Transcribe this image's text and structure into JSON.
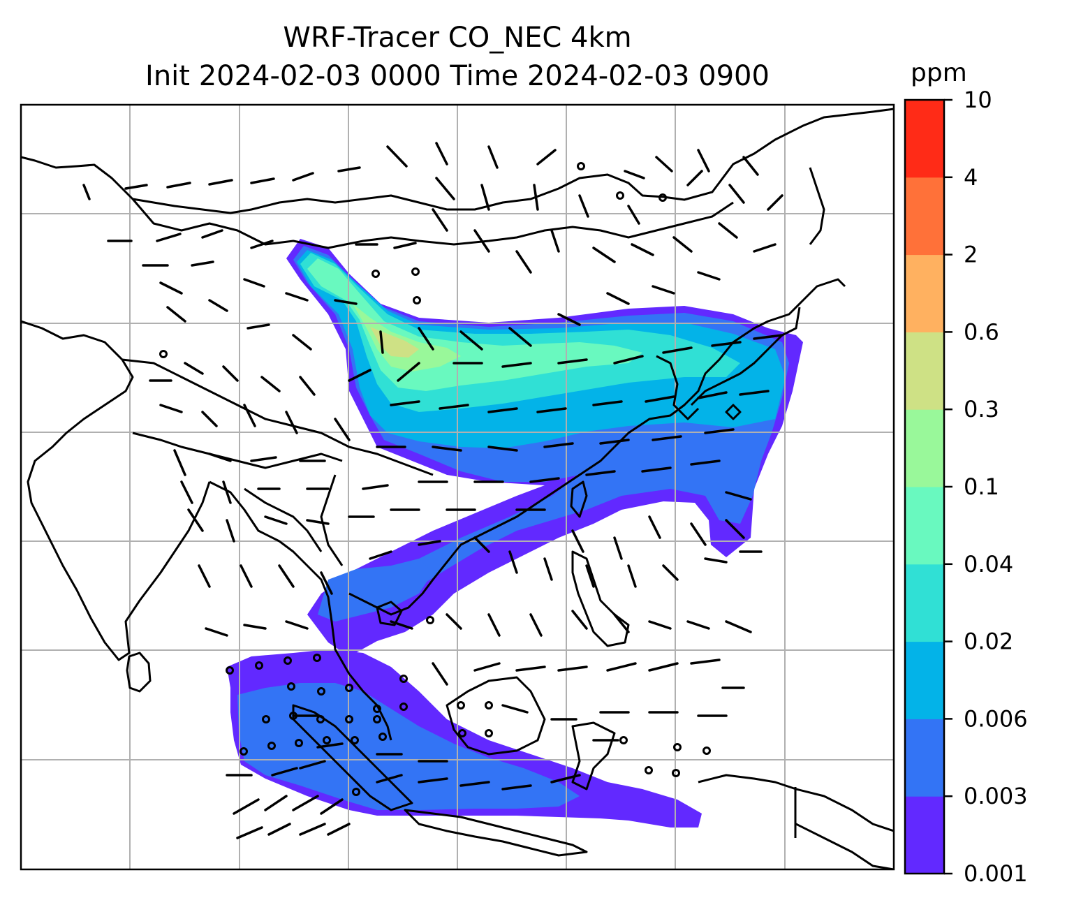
{
  "title": {
    "line1": "WRF-Tracer CO_NEC 4km",
    "line2": "Init 2024-02-03 0000 Time 2024-02-03 0900"
  },
  "colorbar": {
    "unit": "ppm",
    "ticks": [
      "0.001",
      "0.003",
      "0.006",
      "0.02",
      "0.04",
      "0.1",
      "0.3",
      "0.6",
      "2",
      "4",
      "10"
    ],
    "colors": [
      "#6229ff",
      "#3374f5",
      "#03b3e8",
      "#30e0d5",
      "#69f9bf",
      "#99f89a",
      "#cee185",
      "#ffb160",
      "#ff7139",
      "#ff2b17"
    ]
  },
  "map": {
    "gridlines": true,
    "plume_colors": {
      "low": "#6229ff",
      "mid": "#3374f5",
      "cyan": "#03b3e8",
      "teal": "#30e0d5",
      "green": "#69f9bf",
      "lightgreen": "#99f89a",
      "yellow": "#cee185"
    }
  }
}
